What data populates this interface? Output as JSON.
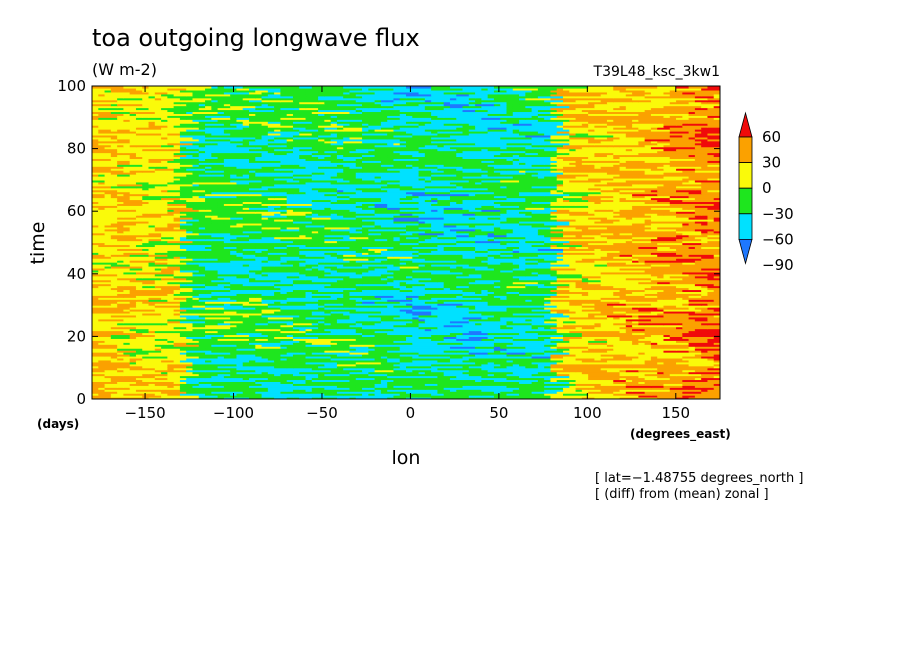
{
  "chart_data": {
    "type": "heatmap",
    "title": "toa outgoing longwave flux",
    "units": "(W m-2)",
    "run_label": "T39L48_ksc_3kw1",
    "xlabel": "lon",
    "ylabel": "time",
    "x_units": "(degrees_east)",
    "y_units": "(days)",
    "xlim": [
      -180,
      175
    ],
    "ylim": [
      0,
      100
    ],
    "x_ticks": [
      -150,
      -100,
      -50,
      0,
      50,
      100,
      150
    ],
    "y_ticks": [
      0,
      20,
      40,
      60,
      80,
      100
    ],
    "x_tick_labels": [
      "−150",
      "−100",
      "−50",
      "0",
      "50",
      "100",
      "150"
    ],
    "y_tick_labels": [
      "0",
      "20",
      "40",
      "60",
      "80",
      "100"
    ],
    "colorbar": {
      "levels": [
        -90,
        -60,
        -30,
        0,
        30,
        60
      ],
      "labels": [
        "−90",
        "−60",
        "−30",
        "0",
        "30",
        "60"
      ],
      "colors": [
        "#1e78ff",
        "#00e1ff",
        "#1ee61e",
        "#fafa0a",
        "#fba100",
        "#f00a0a"
      ],
      "extend": "both"
    },
    "footnotes": [
      "[ lat=−1.48755 degrees_north ]",
      "[ (diff) from (mean) zonal ]"
    ],
    "field_structure": [
      {
        "lon_range": [
          -180,
          -130
        ],
        "dominant": "30 to 60",
        "secondary": "0 to 30"
      },
      {
        "lon_range": [
          -130,
          80
        ],
        "dominant": "-30 to 0",
        "secondary": "-60 to -30"
      },
      {
        "lon_range": [
          80,
          175
        ],
        "dominant": "30 to 60",
        "secondary": "0 to 30",
        "max_over": 60
      }
    ]
  }
}
